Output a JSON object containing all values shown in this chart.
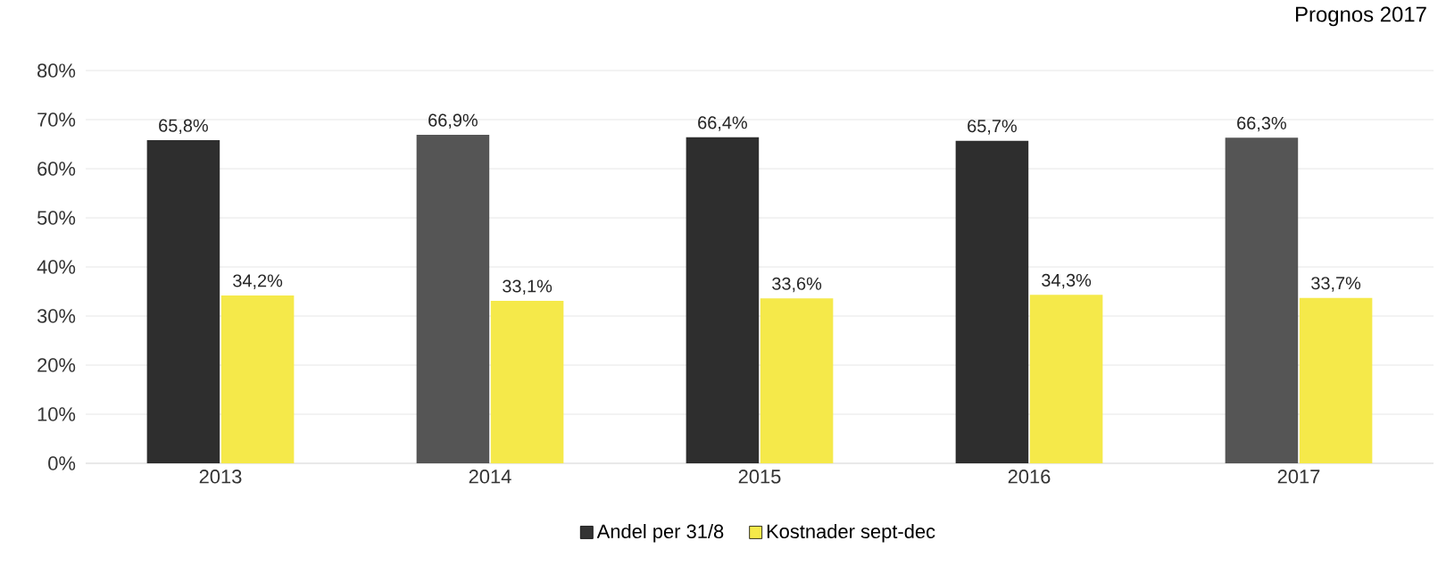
{
  "chart_data": {
    "type": "bar",
    "title": "Prognos 2017",
    "categories": [
      "2013",
      "2014",
      "2015",
      "2016",
      "2017"
    ],
    "series": [
      {
        "name": "Andel per 31/8",
        "color": "#333333",
        "colors": [
          "#2e2e2e",
          "#555555",
          "#2e2e2e",
          "#2e2e2e",
          "#555555"
        ],
        "values": [
          65.8,
          66.9,
          66.4,
          65.7,
          66.3
        ],
        "value_labels": [
          "65,8%",
          "66,9%",
          "66,4%",
          "65,7%",
          "66,3%"
        ]
      },
      {
        "name": "Kostnader sept-dec",
        "color": "#f5e94a",
        "values": [
          34.2,
          33.1,
          33.6,
          34.3,
          33.7
        ],
        "value_labels": [
          "34,2%",
          "33,1%",
          "33,6%",
          "34,3%",
          "33,7%"
        ]
      }
    ],
    "ylim": [
      0,
      80
    ],
    "yticks": [
      {
        "value": 0,
        "label": "0%"
      },
      {
        "value": 10,
        "label": "10%"
      },
      {
        "value": 20,
        "label": "20%"
      },
      {
        "value": 30,
        "label": "30%"
      },
      {
        "value": 40,
        "label": "40%"
      },
      {
        "value": 50,
        "label": "50%"
      },
      {
        "value": 60,
        "label": "60%"
      },
      {
        "value": 70,
        "label": "70%"
      },
      {
        "value": 80,
        "label": "80%"
      }
    ],
    "grid": "y",
    "legend": "bottom"
  }
}
